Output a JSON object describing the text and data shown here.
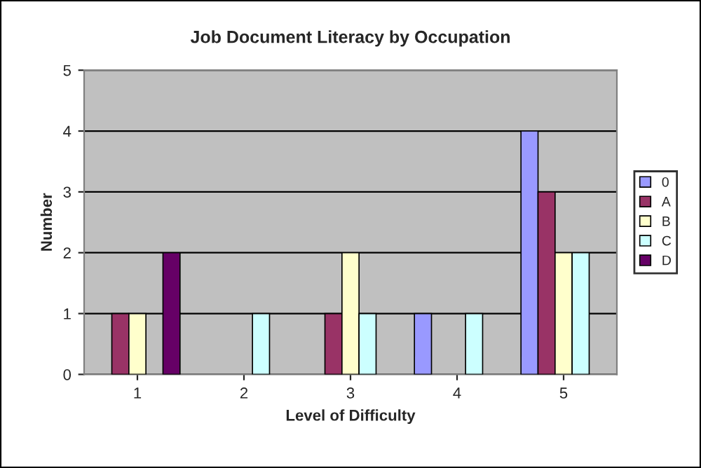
{
  "chart_data": {
    "type": "bar",
    "title": "Job Document Literacy by Occupation",
    "xlabel": "Level of Difficulty",
    "ylabel": "Number",
    "categories": [
      "1",
      "2",
      "3",
      "4",
      "5"
    ],
    "series": [
      {
        "name": "0",
        "color": "#9999ff",
        "values": [
          0,
          0,
          0,
          1,
          4
        ]
      },
      {
        "name": "A",
        "color": "#993366",
        "values": [
          1,
          0,
          1,
          0,
          3
        ]
      },
      {
        "name": "B",
        "color": "#ffffcc",
        "values": [
          1,
          0,
          2,
          0,
          2
        ]
      },
      {
        "name": "C",
        "color": "#ccffff",
        "values": [
          0,
          1,
          1,
          1,
          2
        ]
      },
      {
        "name": "D",
        "color": "#660066",
        "values": [
          2,
          0,
          0,
          0,
          0
        ]
      }
    ],
    "ylim": [
      0,
      5
    ],
    "yticks": [
      0,
      1,
      2,
      3,
      4,
      5
    ],
    "grid": "y",
    "legend": "right"
  }
}
